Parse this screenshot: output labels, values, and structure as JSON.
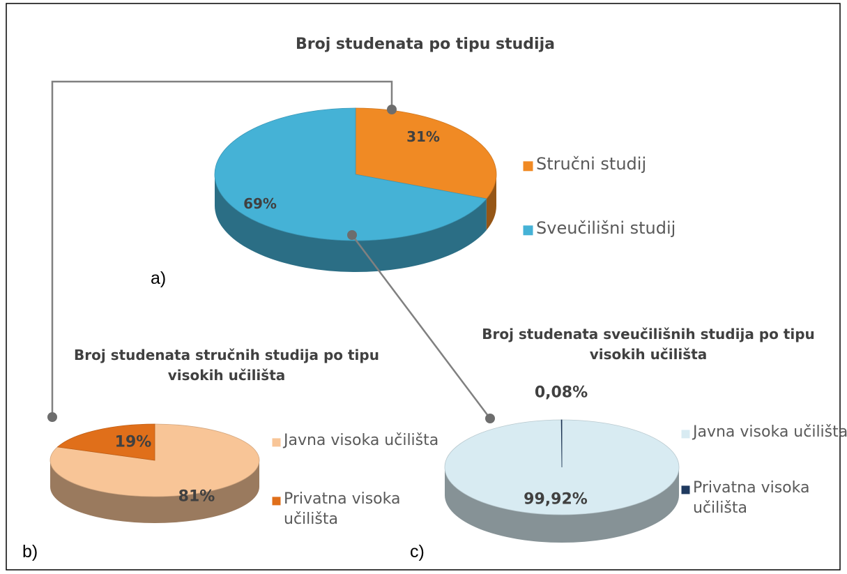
{
  "chart_data": [
    {
      "type": "pie",
      "title": "Broj studenata po tipu studija",
      "panel": "a)",
      "categories": [
        "Stručni studij",
        "Sveučilišni studij"
      ],
      "values": [
        31,
        69
      ],
      "value_labels": [
        "31%",
        "69%"
      ],
      "colors": [
        "#f08a24",
        "#45b2d6"
      ]
    },
    {
      "type": "pie",
      "title": "Broj studenata stručnih studija po tipu visokih učilišta",
      "panel": "b)",
      "categories": [
        "Javna visoka učilišta",
        "Privatna visoka učilišta"
      ],
      "values": [
        81,
        19
      ],
      "value_labels": [
        "81%",
        "19%"
      ],
      "colors": [
        "#f8c597",
        "#e06f1a"
      ]
    },
    {
      "type": "pie",
      "title": "Broj studenata sveučilišnih studija po tipu visokih učilišta",
      "panel": "c)",
      "categories": [
        "Javna visoka učilišta",
        "Privatna visoka učilišta"
      ],
      "values": [
        99.92,
        0.08
      ],
      "value_labels": [
        "99,92%",
        "0,08%"
      ],
      "colors": [
        "#d8ebf2",
        "#1f3a5f"
      ]
    }
  ]
}
